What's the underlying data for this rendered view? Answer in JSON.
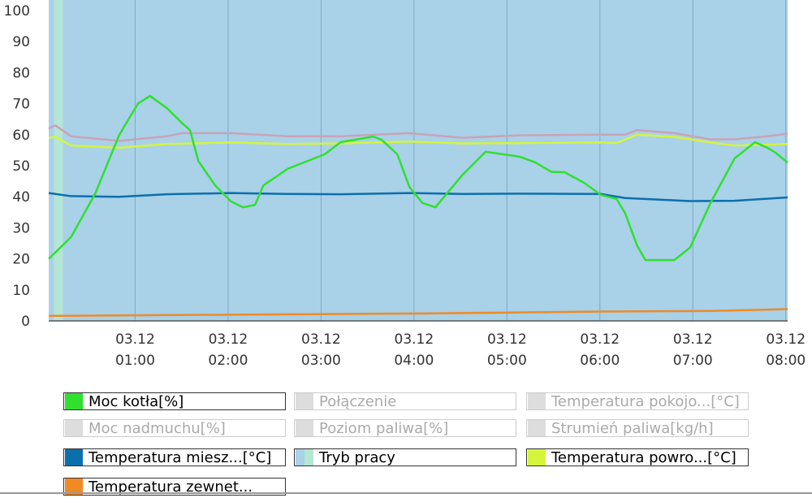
{
  "chart_data": {
    "type": "line",
    "xlim": [
      0.07,
      8.02
    ],
    "xticks": [
      {
        "value": 1,
        "label": "03.12\n01:00"
      },
      {
        "value": 2,
        "label": "03.12\n02:00"
      },
      {
        "value": 3,
        "label": "03.12\n03:00"
      },
      {
        "value": 4,
        "label": "03.12\n04:00"
      },
      {
        "value": 5,
        "label": "03.12\n05:00"
      },
      {
        "value": 6,
        "label": "03.12\n06:00"
      },
      {
        "value": 7,
        "label": "03.12\n07:00"
      },
      {
        "value": 8,
        "label": "03.12\n08:00"
      }
    ],
    "ylim": [
      0,
      100
    ],
    "yticks": [
      0,
      10,
      20,
      30,
      40,
      50,
      60,
      70,
      80,
      90,
      100
    ],
    "grid": "x",
    "series": [
      {
        "name": "Moc kotła[%]",
        "color": "#2fe02f",
        "visible": true,
        "x": [
          0.07,
          0.31,
          0.57,
          0.83,
          1.03,
          1.16,
          1.34,
          1.51,
          1.59,
          1.68,
          1.86,
          2.03,
          2.16,
          2.29,
          2.38,
          2.51,
          2.64,
          3.04,
          3.21,
          3.56,
          3.65,
          3.82,
          3.95,
          4.09,
          4.23,
          4.52,
          4.77,
          5.14,
          5.31,
          5.48,
          5.62,
          5.83,
          6.01,
          6.18,
          6.27,
          6.4,
          6.49,
          6.8,
          6.97,
          7.19,
          7.45,
          7.67,
          7.8,
          7.89,
          8.02
        ],
        "values": [
          20,
          27,
          41,
          60,
          70,
          72.5,
          68.6,
          63.6,
          61.5,
          51.5,
          43.7,
          38.5,
          36.6,
          37.4,
          43.7,
          46.3,
          49,
          53.7,
          57.6,
          59.4,
          58.4,
          53.7,
          43.2,
          38,
          36.6,
          47,
          54.5,
          52.9,
          51,
          48,
          47.9,
          44.5,
          40.6,
          39.3,
          34.8,
          24.3,
          19.6,
          19.6,
          23.6,
          38,
          52.4,
          57.6,
          55.8,
          54.2,
          51
        ]
      },
      {
        "name": "Połączenie",
        "color": "#dddddd",
        "visible": false
      },
      {
        "name": "Temperatura pokojo...[°C]",
        "color": "#dddddd",
        "visible": false
      },
      {
        "name": "Moc nadmuchu[%]",
        "color": "#dddddd",
        "visible": false
      },
      {
        "name": "Poziom paliwa[%]",
        "color": "#dddddd",
        "visible": false
      },
      {
        "name": "Strumień paliwa[kg/h]",
        "color": "#dddddd",
        "visible": false
      },
      {
        "name": "Temperatura miesz...[°C]",
        "color": "#0b6fae",
        "visible": true,
        "x": [
          0.07,
          0.31,
          0.83,
          1.34,
          2.03,
          2.64,
          3.21,
          3.95,
          4.52,
          5.14,
          6.01,
          6.27,
          6.97,
          7.45,
          8.02
        ],
        "values": [
          41.2,
          40.2,
          40,
          40.8,
          41.2,
          40.9,
          40.8,
          41.2,
          40.9,
          41,
          40.9,
          39.6,
          38.6,
          38.7,
          39.8
        ]
      },
      {
        "name": "Tryb pracy",
        "type": "band",
        "visible": true,
        "bands": [
          {
            "x0": 0.07,
            "x1": 0.13,
            "color": "#a9d1e8"
          },
          {
            "x0": 0.13,
            "x1": 0.22,
            "color": "#b3e6d3"
          },
          {
            "x0": 0.22,
            "x1": 8.02,
            "color": "#a9d1e8"
          }
        ]
      },
      {
        "name": "Temperatura powro...[°C]",
        "color": "#d4f53c",
        "visible": true,
        "x": [
          0.07,
          0.14,
          0.31,
          0.83,
          1.34,
          2.03,
          2.64,
          3.21,
          3.95,
          4.52,
          5.14,
          6.01,
          6.18,
          6.4,
          6.8,
          7.19,
          7.45,
          8.02
        ],
        "values": [
          59,
          59.3,
          56.5,
          55.8,
          57,
          57.5,
          57,
          57.2,
          57.8,
          57.2,
          57.3,
          57.5,
          57.3,
          60,
          59.3,
          57.5,
          56.5,
          57
        ]
      },
      {
        "name": "Temperatura zewnet...",
        "color": "#f08a24",
        "visible": true,
        "x": [
          0.07,
          2.03,
          4.09,
          6.01,
          7.19,
          8.02
        ],
        "values": [
          1.6,
          2,
          2.4,
          3,
          3.2,
          3.8
        ]
      },
      {
        "color": "#c9a3b6",
        "visible": true,
        "x": [
          0.07,
          0.14,
          0.31,
          0.83,
          1.34,
          1.51,
          2.03,
          2.64,
          3.21,
          3.95,
          4.52,
          5.14,
          6.01,
          6.27,
          6.4,
          6.8,
          7.19,
          7.45,
          7.8,
          8.02
        ],
        "values": [
          62,
          63,
          59.5,
          58,
          59.5,
          60.5,
          60.5,
          59.5,
          59.5,
          60.5,
          59,
          59.8,
          60,
          60,
          61.5,
          60.5,
          58.5,
          58.5,
          59.5,
          60.3
        ]
      }
    ]
  }
}
